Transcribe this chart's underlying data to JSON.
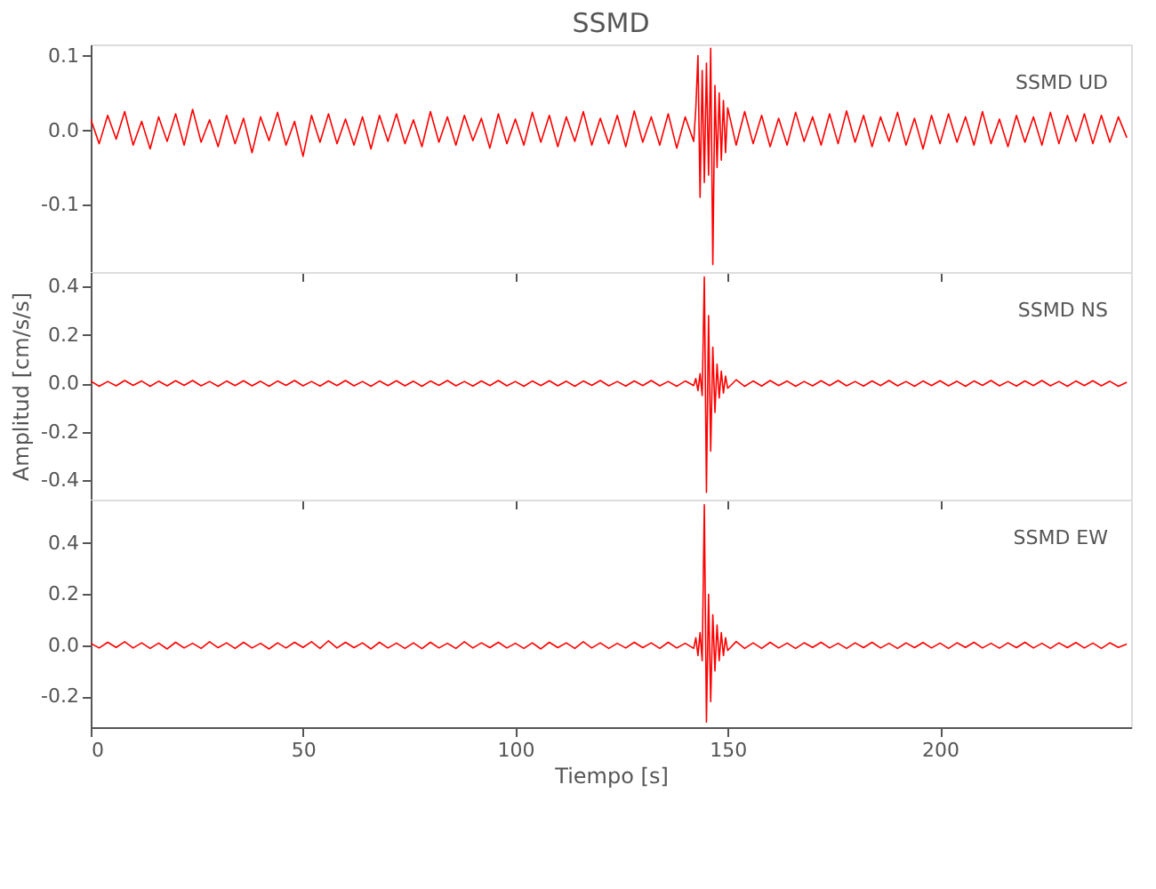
{
  "chart_data": [
    {
      "type": "line",
      "title": "SSMD",
      "annotations": [
        "SSMD   UD"
      ],
      "tick_labels": "y",
      "grid": false,
      "xlim": [
        0,
        245
      ],
      "xticks": [
        0,
        50,
        100,
        150,
        200
      ],
      "ylim": [
        -0.19,
        0.115
      ],
      "yticks": [
        {
          "value": -0.1,
          "label": "-0.1"
        },
        {
          "value": 0,
          "label": "0.0"
        },
        {
          "value": 0.1,
          "label": "0.1"
        }
      ],
      "x": [
        0,
        2,
        4,
        6,
        8,
        10,
        12,
        14,
        16,
        18,
        20,
        22,
        24,
        26,
        28,
        30,
        32,
        34,
        36,
        38,
        40,
        42,
        44,
        46,
        48,
        50,
        52,
        54,
        56,
        58,
        60,
        62,
        64,
        66,
        68,
        70,
        72,
        74,
        76,
        78,
        80,
        82,
        84,
        86,
        88,
        90,
        92,
        94,
        96,
        98,
        100,
        102,
        104,
        106,
        108,
        110,
        112,
        114,
        116,
        118,
        120,
        122,
        124,
        126,
        128,
        130,
        132,
        134,
        136,
        138,
        140,
        142,
        142.5,
        143,
        143.5,
        144,
        144.5,
        145,
        145.5,
        146,
        146.5,
        147,
        147.5,
        148,
        148.5,
        149,
        149.5,
        150,
        152,
        154,
        156,
        158,
        160,
        162,
        164,
        166,
        168,
        170,
        172,
        174,
        176,
        178,
        180,
        182,
        184,
        186,
        188,
        190,
        192,
        194,
        196,
        198,
        200,
        202,
        204,
        206,
        208,
        210,
        212,
        214,
        216,
        218,
        220,
        222,
        224,
        226,
        228,
        230,
        232,
        234,
        236,
        238,
        240,
        242,
        244
      ],
      "series": [
        {
          "color": "#ff0000",
          "values": [
            0.015,
            -0.018,
            0.02,
            -0.012,
            0.025,
            -0.02,
            0.012,
            -0.025,
            0.018,
            -0.015,
            0.022,
            -0.02,
            0.028,
            -0.016,
            0.014,
            -0.022,
            0.02,
            -0.018,
            0.016,
            -0.03,
            0.018,
            -0.014,
            0.024,
            -0.02,
            0.012,
            -0.035,
            0.02,
            -0.016,
            0.022,
            -0.018,
            0.015,
            -0.02,
            0.018,
            -0.025,
            0.02,
            -0.015,
            0.022,
            -0.018,
            0.014,
            -0.022,
            0.025,
            -0.016,
            0.018,
            -0.02,
            0.02,
            -0.014,
            0.016,
            -0.024,
            0.022,
            -0.018,
            0.015,
            -0.02,
            0.024,
            -0.016,
            0.02,
            -0.022,
            0.018,
            -0.015,
            0.025,
            -0.02,
            0.016,
            -0.018,
            0.02,
            -0.022,
            0.026,
            -0.016,
            0.018,
            -0.02,
            0.022,
            -0.024,
            0.018,
            -0.015,
            0.03,
            0.1,
            -0.09,
            0.08,
            -0.07,
            0.09,
            -0.06,
            0.11,
            -0.18,
            0.06,
            -0.05,
            0.05,
            -0.04,
            0.04,
            -0.03,
            0.03,
            -0.02,
            0.025,
            -0.018,
            0.02,
            -0.022,
            0.016,
            -0.02,
            0.024,
            -0.015,
            0.018,
            -0.02,
            0.022,
            -0.018,
            0.026,
            -0.016,
            0.02,
            -0.022,
            0.018,
            -0.015,
            0.024,
            -0.02,
            0.016,
            -0.025,
            0.02,
            -0.018,
            0.022,
            -0.016,
            0.018,
            -0.02,
            0.025,
            -0.018,
            0.015,
            -0.022,
            0.02,
            -0.016,
            0.018,
            -0.02,
            0.024,
            -0.018,
            0.02,
            -0.015,
            0.022,
            -0.018,
            0.02,
            -0.016,
            0.018,
            -0.01
          ]
        }
      ]
    },
    {
      "type": "line",
      "ylabel": "Amplitud [cm/s/s]",
      "annotations": [
        "SSMD   NS"
      ],
      "tick_labels": "y",
      "grid": false,
      "xlim": [
        0,
        245
      ],
      "xticks": [
        0,
        50,
        100,
        150,
        200
      ],
      "ylim": [
        -0.48,
        0.46
      ],
      "yticks": [
        {
          "value": -0.4,
          "label": "-0.4"
        },
        {
          "value": -0.2,
          "label": "-0.2"
        },
        {
          "value": 0,
          "label": "0.0"
        },
        {
          "value": 0.2,
          "label": "0.2"
        },
        {
          "value": 0.4,
          "label": "0.4"
        }
      ],
      "x": [
        0,
        2,
        4,
        6,
        8,
        10,
        12,
        14,
        16,
        18,
        20,
        22,
        24,
        26,
        28,
        30,
        32,
        34,
        36,
        38,
        40,
        42,
        44,
        46,
        48,
        50,
        52,
        54,
        56,
        58,
        60,
        62,
        64,
        66,
        68,
        70,
        72,
        74,
        76,
        78,
        80,
        82,
        84,
        86,
        88,
        90,
        92,
        94,
        96,
        98,
        100,
        102,
        104,
        106,
        108,
        110,
        112,
        114,
        116,
        118,
        120,
        122,
        124,
        126,
        128,
        130,
        132,
        134,
        136,
        138,
        140,
        142,
        142.5,
        143,
        143.5,
        144,
        144.5,
        145,
        145.5,
        146,
        146.5,
        147,
        147.5,
        148,
        148.5,
        149,
        149.5,
        150,
        152,
        154,
        156,
        158,
        160,
        162,
        164,
        166,
        168,
        170,
        172,
        174,
        176,
        178,
        180,
        182,
        184,
        186,
        188,
        190,
        192,
        194,
        196,
        198,
        200,
        202,
        204,
        206,
        208,
        210,
        212,
        214,
        216,
        218,
        220,
        222,
        224,
        226,
        228,
        230,
        232,
        234,
        236,
        238,
        240,
        242,
        244
      ],
      "series": [
        {
          "color": "#ff0000",
          "values": [
            0.01,
            -0.012,
            0.008,
            -0.01,
            0.012,
            -0.008,
            0.01,
            -0.012,
            0.009,
            -0.01,
            0.011,
            -0.008,
            0.012,
            -0.01,
            0.008,
            -0.012,
            0.01,
            -0.009,
            0.011,
            -0.01,
            0.009,
            -0.012,
            0.01,
            -0.008,
            0.012,
            -0.01,
            0.008,
            -0.011,
            0.01,
            -0.009,
            0.012,
            -0.01,
            0.008,
            -0.012,
            0.01,
            -0.009,
            0.011,
            -0.01,
            0.009,
            -0.012,
            0.01,
            -0.008,
            0.012,
            -0.01,
            0.008,
            -0.011,
            0.01,
            -0.009,
            0.012,
            -0.01,
            0.008,
            -0.012,
            0.01,
            -0.009,
            0.011,
            -0.01,
            0.009,
            -0.012,
            0.01,
            -0.008,
            0.012,
            -0.01,
            0.008,
            -0.011,
            0.01,
            -0.009,
            0.012,
            -0.01,
            0.008,
            -0.012,
            0.01,
            -0.009,
            0.02,
            -0.03,
            0.04,
            -0.05,
            0.44,
            -0.45,
            0.28,
            -0.28,
            0.15,
            -0.12,
            0.08,
            -0.06,
            0.05,
            -0.04,
            0.03,
            -0.02,
            0.015,
            -0.012,
            0.01,
            -0.011,
            0.012,
            -0.009,
            0.01,
            -0.012,
            0.008,
            -0.01,
            0.011,
            -0.009,
            0.012,
            -0.01,
            0.008,
            -0.011,
            0.01,
            -0.009,
            0.012,
            -0.01,
            0.008,
            -0.012,
            0.01,
            -0.009,
            0.011,
            -0.01,
            0.009,
            -0.012,
            0.01,
            -0.008,
            0.012,
            -0.01,
            0.008,
            -0.011,
            0.01,
            -0.009,
            0.012,
            -0.01,
            0.008,
            -0.012,
            0.01,
            -0.009,
            0.011,
            -0.01,
            0.009,
            -0.012,
            0.005
          ]
        }
      ]
    },
    {
      "type": "line",
      "xlabel": "Tiempo [s]",
      "annotations": [
        "SSMD   EW"
      ],
      "grid": false,
      "xlim": [
        0,
        245
      ],
      "xticks": [
        0,
        50,
        100,
        150,
        200
      ],
      "ylim": [
        -0.32,
        0.57
      ],
      "yticks": [
        {
          "value": -0.2,
          "label": "-0.2"
        },
        {
          "value": 0,
          "label": "0.0"
        },
        {
          "value": 0.2,
          "label": "0.2"
        },
        {
          "value": 0.4,
          "label": "0.4"
        }
      ],
      "x": [
        0,
        2,
        4,
        6,
        8,
        10,
        12,
        14,
        16,
        18,
        20,
        22,
        24,
        26,
        28,
        30,
        32,
        34,
        36,
        38,
        40,
        42,
        44,
        46,
        48,
        50,
        52,
        54,
        56,
        58,
        60,
        62,
        64,
        66,
        68,
        70,
        72,
        74,
        76,
        78,
        80,
        82,
        84,
        86,
        88,
        90,
        92,
        94,
        96,
        98,
        100,
        102,
        104,
        106,
        108,
        110,
        112,
        114,
        116,
        118,
        120,
        122,
        124,
        126,
        128,
        130,
        132,
        134,
        136,
        138,
        140,
        142,
        142.5,
        143,
        143.5,
        144,
        144.5,
        145,
        145.5,
        146,
        146.5,
        147,
        147.5,
        148,
        148.5,
        149,
        149.5,
        150,
        152,
        154,
        156,
        158,
        160,
        162,
        164,
        166,
        168,
        170,
        172,
        174,
        176,
        178,
        180,
        182,
        184,
        186,
        188,
        190,
        192,
        194,
        196,
        198,
        200,
        202,
        204,
        206,
        208,
        210,
        212,
        214,
        216,
        218,
        220,
        222,
        224,
        226,
        228,
        230,
        232,
        234,
        236,
        238,
        240,
        242,
        244
      ],
      "series": [
        {
          "color": "#ff0000",
          "values": [
            0.008,
            -0.01,
            0.012,
            -0.008,
            0.014,
            -0.01,
            0.01,
            -0.012,
            0.009,
            -0.014,
            0.012,
            -0.01,
            0.008,
            -0.012,
            0.014,
            -0.009,
            0.01,
            -0.012,
            0.012,
            -0.01,
            0.008,
            -0.014,
            0.01,
            -0.01,
            0.012,
            -0.008,
            0.014,
            -0.012,
            0.018,
            -0.01,
            0.012,
            -0.009,
            0.01,
            -0.014,
            0.012,
            -0.01,
            0.009,
            -0.012,
            0.01,
            -0.013,
            0.012,
            -0.01,
            0.008,
            -0.012,
            0.014,
            -0.01,
            0.01,
            -0.009,
            0.012,
            -0.01,
            0.008,
            -0.012,
            0.01,
            -0.014,
            0.012,
            -0.009,
            0.01,
            -0.012,
            0.014,
            -0.01,
            0.01,
            -0.012,
            0.008,
            -0.01,
            0.012,
            -0.009,
            0.01,
            -0.012,
            0.012,
            -0.01,
            0.008,
            -0.012,
            0.03,
            -0.04,
            0.05,
            -0.06,
            0.55,
            -0.3,
            0.2,
            -0.22,
            0.12,
            -0.1,
            0.08,
            -0.06,
            0.05,
            -0.04,
            0.03,
            -0.02,
            0.015,
            -0.012,
            0.01,
            -0.012,
            0.012,
            -0.01,
            0.009,
            -0.012,
            0.01,
            -0.008,
            0.012,
            -0.01,
            0.008,
            -0.012,
            0.01,
            -0.009,
            0.012,
            -0.01,
            0.008,
            -0.012,
            0.01,
            -0.009,
            0.011,
            -0.01,
            0.009,
            -0.012,
            0.01,
            -0.008,
            0.012,
            -0.01,
            0.008,
            -0.011,
            0.01,
            -0.009,
            0.012,
            -0.01,
            0.008,
            -0.012,
            0.01,
            -0.009,
            0.011,
            -0.01,
            0.009,
            -0.012,
            0.01,
            -0.008,
            0.005
          ]
        }
      ]
    }
  ]
}
